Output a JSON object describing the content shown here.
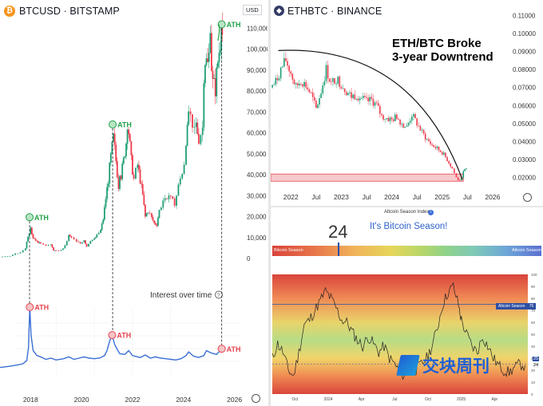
{
  "left_panel": {
    "title": "BTCUSD · BITSTAMP",
    "currency_badge": "USD",
    "icon": "bitcoin-icon",
    "settings_icon": "gear-icon"
  },
  "right_top": {
    "title": "ETHBTC · BINANCE",
    "icon": "ethereum-icon",
    "settings_icon": "gear-icon",
    "headline_line1": "ETH/BTC Broke",
    "headline_line2": "3-year Downtrend"
  },
  "right_bottom": {
    "title": "Altcoin Season Index",
    "info_icon": "info-icon",
    "index_value": "24",
    "status_text": "It's Bitcoin Season!",
    "scale_left": "Bitcoin Season",
    "scale_right": "Altcoin Season",
    "altcoin_season_line_label": "Altcoin Season",
    "altcoin_season_line_value": "75",
    "right_axis_labels": [
      "100",
      "90",
      "80",
      "70",
      "60",
      "50",
      "40",
      "30",
      "20",
      "10",
      "0"
    ],
    "current_badges": [
      "25",
      "24"
    ],
    "watermark": "交块周刊"
  },
  "colors": {
    "ath_green": "#22a34a",
    "ath_red": "#e5434f",
    "up_candle": "#1e9e76",
    "down_candle": "#ef3b4c",
    "trend_blue": "#3b6fd4",
    "support_zone": "#f6c9cc"
  },
  "chart_data": [
    {
      "id": "btc-price",
      "type": "candlestick",
      "title": "BTCUSD · BITSTAMP",
      "ylabel": "USD",
      "y_ticks": [
        0,
        10000,
        20000,
        30000,
        40000,
        50000,
        60000,
        70000,
        80000,
        90000,
        100000,
        110000
      ],
      "y_tick_labels": [
        "0",
        "10,000",
        "20,000",
        "30,000",
        "40,000",
        "50,000",
        "60,000",
        "70,000",
        "80,000",
        "90,000",
        "100,000",
        "110,000"
      ],
      "x_ticks": [
        2018,
        2020,
        2022,
        2024,
        2026
      ],
      "x_tick_labels": [
        "2018",
        "2020",
        "2022",
        "2024",
        "2026"
      ],
      "ylim": [
        0,
        112000
      ],
      "xlim": [
        2016.8,
        2026.2
      ],
      "closes": [
        [
          2016.8,
          800
        ],
        [
          2017.0,
          1000
        ],
        [
          2017.2,
          1100
        ],
        [
          2017.4,
          2300
        ],
        [
          2017.6,
          2800
        ],
        [
          2017.8,
          5000
        ],
        [
          2017.9,
          11000
        ],
        [
          2018.0,
          14000
        ],
        [
          2018.1,
          10000
        ],
        [
          2018.2,
          9000
        ],
        [
          2018.3,
          7000
        ],
        [
          2018.4,
          7500
        ],
        [
          2018.6,
          6500
        ],
        [
          2018.8,
          6400
        ],
        [
          2018.9,
          4000
        ],
        [
          2019.0,
          3600
        ],
        [
          2019.2,
          4000
        ],
        [
          2019.35,
          6000
        ],
        [
          2019.5,
          11000
        ],
        [
          2019.6,
          10000
        ],
        [
          2019.8,
          8000
        ],
        [
          2019.95,
          7200
        ],
        [
          2020.1,
          9000
        ],
        [
          2020.2,
          5800
        ],
        [
          2020.35,
          8800
        ],
        [
          2020.5,
          9200
        ],
        [
          2020.6,
          11000
        ],
        [
          2020.75,
          13500
        ],
        [
          2020.85,
          19000
        ],
        [
          2020.95,
          29000
        ],
        [
          2021.05,
          38000
        ],
        [
          2021.15,
          49000
        ],
        [
          2021.25,
          58000
        ],
        [
          2021.35,
          47000
        ],
        [
          2021.45,
          35000
        ],
        [
          2021.55,
          40000
        ],
        [
          2021.65,
          47000
        ],
        [
          2021.75,
          56000
        ],
        [
          2021.85,
          61000
        ],
        [
          2021.95,
          47000
        ],
        [
          2022.05,
          38000
        ],
        [
          2022.2,
          45000
        ],
        [
          2022.3,
          38000
        ],
        [
          2022.4,
          30000
        ],
        [
          2022.5,
          20000
        ],
        [
          2022.6,
          23000
        ],
        [
          2022.75,
          19500
        ],
        [
          2022.85,
          17000
        ],
        [
          2022.95,
          16500
        ],
        [
          2023.05,
          23000
        ],
        [
          2023.2,
          28000
        ],
        [
          2023.35,
          27000
        ],
        [
          2023.5,
          30000
        ],
        [
          2023.65,
          26000
        ],
        [
          2023.8,
          34500
        ],
        [
          2023.95,
          42000
        ],
        [
          2024.1,
          51000
        ],
        [
          2024.2,
          71000
        ],
        [
          2024.35,
          60000
        ],
        [
          2024.5,
          64000
        ],
        [
          2024.6,
          58000
        ],
        [
          2024.75,
          63000
        ],
        [
          2024.85,
          96000
        ],
        [
          2024.95,
          93000
        ],
        [
          2025.05,
          102000
        ],
        [
          2025.15,
          84000
        ],
        [
          2025.25,
          82000
        ],
        [
          2025.35,
          95000
        ],
        [
          2025.45,
          105000
        ],
        [
          2025.52,
          108000
        ]
      ],
      "annotations": [
        {
          "label": "ATH",
          "x": 2017.96,
          "y": 19700,
          "color": "green"
        },
        {
          "label": "ATH",
          "x": 2021.22,
          "y": 64000,
          "color": "green"
        },
        {
          "label": "ATH",
          "x": 2025.5,
          "y": 111800,
          "color": "green"
        }
      ]
    },
    {
      "id": "interest-over-time",
      "type": "line",
      "title": "Interest over time",
      "info_icon": "help-icon",
      "x": [
        2016.8,
        2017.2,
        2017.5,
        2017.7,
        2017.85,
        2017.92,
        2017.97,
        2018.02,
        2018.1,
        2018.25,
        2018.4,
        2018.6,
        2018.8,
        2019.0,
        2019.3,
        2019.5,
        2019.7,
        2019.9,
        2020.1,
        2020.3,
        2020.5,
        2020.7,
        2020.9,
        2021.0,
        2021.1,
        2021.2,
        2021.3,
        2021.4,
        2021.5,
        2021.7,
        2021.85,
        2022.0,
        2022.3,
        2022.5,
        2022.7,
        2022.9,
        2023.1,
        2023.3,
        2023.5,
        2023.7,
        2023.9,
        2024.1,
        2024.2,
        2024.4,
        2024.6,
        2024.8,
        2024.9,
        2025.1,
        2025.3,
        2025.5
      ],
      "y": [
        3,
        5,
        7,
        9,
        14,
        35,
        100,
        55,
        30,
        22,
        20,
        16,
        18,
        15,
        17,
        20,
        16,
        18,
        20,
        18,
        17,
        18,
        22,
        30,
        45,
        55,
        40,
        32,
        25,
        24,
        30,
        22,
        19,
        23,
        18,
        20,
        18,
        17,
        16,
        15,
        17,
        22,
        28,
        21,
        19,
        22,
        30,
        26,
        24,
        33
      ],
      "annotations": [
        {
          "label": "ATH",
          "x": 2017.97,
          "y": 100,
          "color": "red"
        },
        {
          "label": "ATH",
          "x": 2021.2,
          "y": 55,
          "color": "red"
        },
        {
          "label": "ATH",
          "x": 2025.5,
          "y": 33,
          "color": "red"
        }
      ],
      "ylim": [
        0,
        100
      ]
    },
    {
      "id": "ethbtc",
      "type": "candlestick",
      "title": "ETHBTC · BINANCE",
      "y_ticks": [
        0.02,
        0.03,
        0.04,
        0.05,
        0.06,
        0.07,
        0.08,
        0.09,
        0.1,
        0.11
      ],
      "y_tick_labels": [
        "0.02000",
        "0.03000",
        "0.04000",
        "0.05000",
        "0.06000",
        "0.07000",
        "0.08000",
        "0.09000",
        "0.10000",
        "0.11000"
      ],
      "x_tick_labels": [
        "2022",
        "Jul",
        "2023",
        "Jul",
        "2024",
        "Jul",
        "2025",
        "Jul",
        "2026"
      ],
      "x_ticks": [
        2022.0,
        2022.5,
        2023.0,
        2023.5,
        2024.0,
        2024.5,
        2025.0,
        2025.5,
        2026.0
      ],
      "ylim": [
        0.015,
        0.115
      ],
      "xlim": [
        2021.6,
        2026.35
      ],
      "closes": [
        [
          2021.6,
          0.07
        ],
        [
          2021.7,
          0.073
        ],
        [
          2021.8,
          0.08
        ],
        [
          2021.9,
          0.085
        ],
        [
          2022.0,
          0.078
        ],
        [
          2022.1,
          0.07
        ],
        [
          2022.2,
          0.074
        ],
        [
          2022.3,
          0.071
        ],
        [
          2022.4,
          0.066
        ],
        [
          2022.5,
          0.058
        ],
        [
          2022.6,
          0.068
        ],
        [
          2022.7,
          0.08
        ],
        [
          2022.8,
          0.072
        ],
        [
          2022.9,
          0.075
        ],
        [
          2023.0,
          0.072
        ],
        [
          2023.1,
          0.068
        ],
        [
          2023.2,
          0.065
        ],
        [
          2023.3,
          0.066
        ],
        [
          2023.4,
          0.064
        ],
        [
          2023.5,
          0.062
        ],
        [
          2023.6,
          0.063
        ],
        [
          2023.7,
          0.06
        ],
        [
          2023.8,
          0.054
        ],
        [
          2023.9,
          0.053
        ],
        [
          2024.0,
          0.052
        ],
        [
          2024.1,
          0.054
        ],
        [
          2024.2,
          0.05
        ],
        [
          2024.3,
          0.048
        ],
        [
          2024.4,
          0.055
        ],
        [
          2024.5,
          0.05
        ],
        [
          2024.6,
          0.045
        ],
        [
          2024.7,
          0.041
        ],
        [
          2024.8,
          0.038
        ],
        [
          2024.9,
          0.036
        ],
        [
          2025.0,
          0.034
        ],
        [
          2025.1,
          0.03
        ],
        [
          2025.2,
          0.025
        ],
        [
          2025.28,
          0.02
        ],
        [
          2025.35,
          0.018
        ],
        [
          2025.42,
          0.023
        ],
        [
          2025.48,
          0.025
        ]
      ],
      "annotations": [
        {
          "label": "ETH/BTC Broke 3-year Downtrend"
        }
      ],
      "support_zone": [
        0.018,
        0.022
      ]
    },
    {
      "id": "altcoin-season-index",
      "type": "line",
      "title": "Altcoin Season Index",
      "x_tick_labels": [
        "Oct",
        "2024",
        "Apr",
        "Jul",
        "Oct",
        "2025",
        "Apr"
      ],
      "x_ticks": [
        2023.75,
        2024.0,
        2024.25,
        2024.5,
        2024.75,
        2025.0,
        2025.25
      ],
      "xlim": [
        2023.58,
        2025.5
      ],
      "ylim": [
        0,
        100
      ],
      "reference_line": {
        "label": "Altcoin Season",
        "value": 75
      },
      "x": [
        2023.58,
        2023.62,
        2023.66,
        2023.7,
        2023.74,
        2023.78,
        2023.82,
        2023.86,
        2023.9,
        2023.94,
        2023.98,
        2024.02,
        2024.06,
        2024.1,
        2024.14,
        2024.18,
        2024.22,
        2024.26,
        2024.3,
        2024.34,
        2024.38,
        2024.42,
        2024.46,
        2024.5,
        2024.54,
        2024.58,
        2024.62,
        2024.66,
        2024.7,
        2024.74,
        2024.78,
        2024.82,
        2024.86,
        2024.9,
        2024.94,
        2024.98,
        2025.0,
        2025.04,
        2025.08,
        2025.12,
        2025.16,
        2025.2,
        2025.24,
        2025.28,
        2025.32,
        2025.36,
        2025.4,
        2025.44,
        2025.48
      ],
      "y": [
        30,
        42,
        35,
        20,
        15,
        35,
        58,
        62,
        70,
        78,
        86,
        80,
        72,
        62,
        60,
        52,
        45,
        40,
        48,
        42,
        35,
        40,
        30,
        25,
        18,
        15,
        22,
        20,
        25,
        30,
        40,
        55,
        75,
        85,
        90,
        74,
        62,
        50,
        40,
        35,
        48,
        40,
        30,
        24,
        20,
        18,
        22,
        25,
        24
      ]
    }
  ]
}
